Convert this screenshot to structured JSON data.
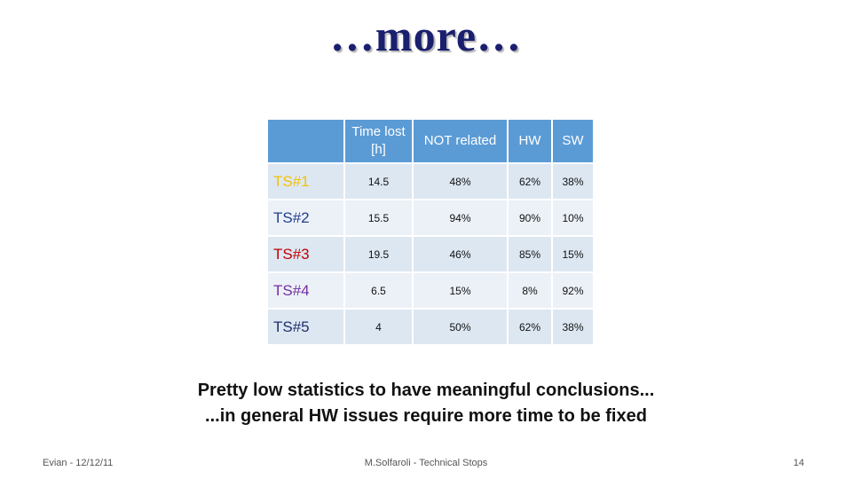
{
  "slide": {
    "title": "…more…",
    "conclusion_line1": "Pretty low statistics to have meaningful conclusions...",
    "conclusion_line2": "...in general HW issues require more time to be fixed"
  },
  "table": {
    "headers": [
      "",
      "Time lost [h]",
      "NOT related",
      "HW",
      "SW"
    ],
    "header_color": "#5b9bd5",
    "rows": [
      {
        "label": "TS#1",
        "label_color": "#f2c200",
        "time_lost": "14.5",
        "not_related": "48%",
        "hw": "62%",
        "sw": "38%"
      },
      {
        "label": "TS#2",
        "label_color": "#1f3f8f",
        "time_lost": "15.5",
        "not_related": "94%",
        "hw": "90%",
        "sw": "10%"
      },
      {
        "label": "TS#3",
        "label_color": "#c00000",
        "time_lost": "19.5",
        "not_related": "46%",
        "hw": "85%",
        "sw": "15%"
      },
      {
        "label": "TS#4",
        "label_color": "#7030a0",
        "time_lost": "6.5",
        "not_related": "15%",
        "hw": "8%",
        "sw": "92%"
      },
      {
        "label": "TS#5",
        "label_color": "#1f2f6f",
        "time_lost": "4",
        "not_related": "50%",
        "hw": "62%",
        "sw": "38%"
      }
    ]
  },
  "footer": {
    "left": "Evian - 12/12/11",
    "center": "M.Solfaroli - Technical Stops",
    "page_number": "14"
  }
}
